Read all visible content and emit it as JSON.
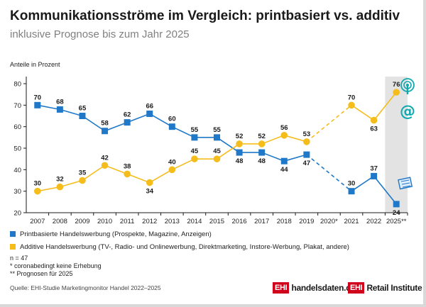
{
  "title": "Kommunikationsströme im Vergleich: printbasiert vs. additiv",
  "subtitle": "inklusive Prognose bis zum Jahr 2025",
  "colors": {
    "print": "#1f78c8",
    "additive": "#f5bd1c",
    "forecast_band": "#e3e3e3",
    "axis": "#1a1a1a",
    "logo_red": "#d0021b",
    "icon_teal": "#10a9b0"
  },
  "chart_data": {
    "type": "line",
    "ylabel": "Anteile in Prozent",
    "ylim": [
      20,
      80
    ],
    "yticks": [
      "20",
      "30",
      "40",
      "50",
      "60",
      "70",
      "80"
    ],
    "categories": [
      "2007",
      "2008",
      "2009",
      "2010",
      "2011",
      "2012",
      "2013",
      "2014",
      "2015",
      "2016",
      "2017",
      "2018",
      "2019",
      "2020*",
      "2021",
      "2022",
      "2025**"
    ],
    "series": [
      {
        "name": "Printbasierte Handelswerbung (Prospekte, Magazine, Anzeigen)",
        "key": "print",
        "values": [
          70,
          68,
          65,
          58,
          62,
          66,
          60,
          55,
          55,
          48,
          48,
          44,
          47,
          null,
          30,
          37,
          24
        ],
        "labels": [
          "70",
          "68",
          "65",
          "58",
          "62",
          "66",
          "60",
          "55",
          "55",
          "48",
          "48",
          "44",
          "47",
          "",
          "30",
          "37",
          "24"
        ]
      },
      {
        "name": "Additive Handelswerbung (TV-, Radio- und Onlinewerbung, Direktmarketing, Instore-Werbung, Plakat, andere)",
        "key": "additive",
        "values": [
          30,
          32,
          35,
          42,
          38,
          34,
          40,
          45,
          45,
          52,
          52,
          56,
          53,
          null,
          70,
          63,
          76
        ],
        "labels": [
          "30",
          "32",
          "35",
          "42",
          "38",
          "34",
          "40",
          "45",
          "45",
          "52",
          "52",
          "56",
          "53",
          "",
          "70",
          "63",
          "76"
        ]
      }
    ],
    "dashed_segment": "2019 → 2021 (2020* keine Erhebung)",
    "forecast_highlight": "2025**"
  },
  "notes": {
    "n": "n = 47",
    "star": "*   coronabedingt keine Erhebung",
    "double_star": "** Prognosen für 2025"
  },
  "source": "Quelle: EHI-Studie Marketingmonitor Handel 2022–2025",
  "logos": {
    "left_box": "EHI",
    "left_text": "handelsdaten.de",
    "right_box": "EHI",
    "right_text": "Retail Institute"
  },
  "icons": [
    "radio-tower-icon",
    "at-sign-icon",
    "newspaper-icon"
  ]
}
